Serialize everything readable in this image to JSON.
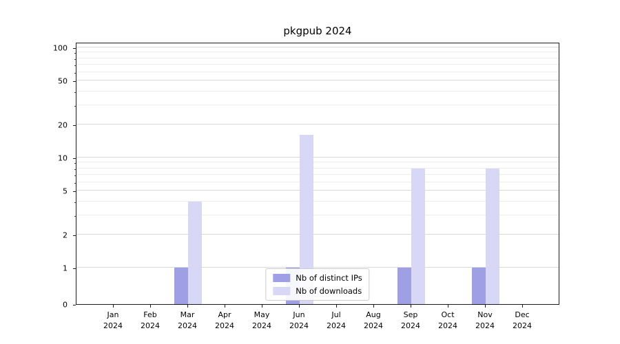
{
  "figure": {
    "background": "#ffffff"
  },
  "chart_data": {
    "type": "bar",
    "title": "pkgpub 2024",
    "categories": [
      "Jan",
      "Feb",
      "Mar",
      "Apr",
      "May",
      "Jun",
      "Jul",
      "Aug",
      "Sep",
      "Oct",
      "Nov",
      "Dec"
    ],
    "x_year": "2024",
    "series": [
      {
        "name": "Nb of distinct IPs",
        "color": "#9f9fe6",
        "values": [
          0,
          0,
          1,
          0,
          0,
          1,
          0,
          0,
          1,
          0,
          1,
          0
        ]
      },
      {
        "name": "Nb of downloads",
        "color": "#d8d8f6",
        "values": [
          0,
          0,
          4,
          0,
          0,
          16,
          0,
          0,
          8,
          0,
          8,
          0
        ]
      }
    ],
    "yscale": "symlog",
    "ylim": [
      0,
      100
    ],
    "yticks": [
      0,
      1,
      2,
      5,
      10,
      20,
      50,
      100
    ],
    "yticks_minor": [
      3,
      4,
      6,
      7,
      8,
      9,
      30,
      40,
      60,
      70,
      80,
      90
    ],
    "grid": true,
    "legend_position": "lower center"
  }
}
